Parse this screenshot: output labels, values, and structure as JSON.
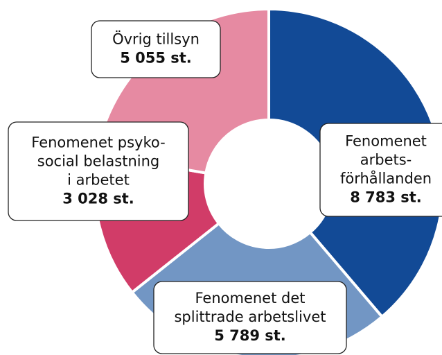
{
  "chart_data": {
    "type": "donut",
    "categories": [
      [
        "Fenomenet",
        "arbets-",
        "förhållanden"
      ],
      [
        "Fenomenet det",
        "splittrade arbetslivet"
      ],
      [
        "Fenomenet psyko-",
        "social belastning",
        "i arbetet"
      ],
      [
        "Övrig tillsyn"
      ]
    ],
    "values": [
      8783,
      5789,
      3028,
      5055
    ],
    "value_labels": [
      "8 783 st.",
      "5 789 st.",
      "3 028 st.",
      "5 055 st."
    ],
    "colors": [
      "#124a96",
      "#7296c4",
      "#d13c68",
      "#e68aa2"
    ]
  }
}
